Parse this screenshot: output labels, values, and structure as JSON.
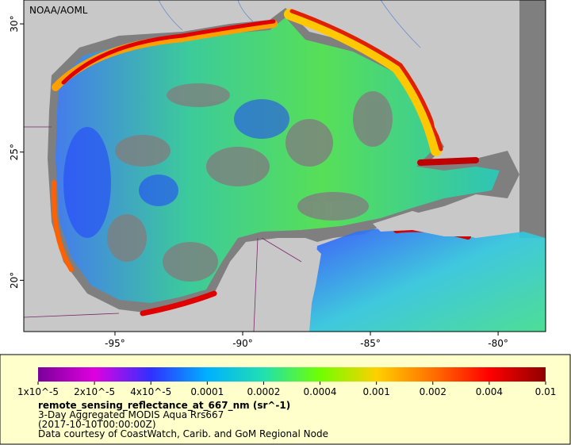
{
  "map": {
    "source": "NOAA/AOML",
    "xlim": [
      -98.57,
      -78.14
    ],
    "ylim": [
      18.0,
      30.93
    ],
    "xticks": [
      {
        "value": -95,
        "label": "-95°"
      },
      {
        "value": -90,
        "label": "-90°"
      },
      {
        "value": -85,
        "label": "-85°"
      },
      {
        "value": -80,
        "label": "-80°"
      }
    ],
    "yticks": [
      {
        "value": 20,
        "label": "20°"
      },
      {
        "value": 25,
        "label": "25°"
      },
      {
        "value": 30,
        "label": "30°"
      }
    ],
    "colorbar": {
      "scale": "log",
      "colors": [
        "#7a0099",
        "#e000e0",
        "#3030ff",
        "#00b0ff",
        "#20e0b0",
        "#70ff00",
        "#ffd000",
        "#ff7000",
        "#ff0000",
        "#900000"
      ],
      "ticks": [
        {
          "value": 1e-05,
          "label": "1x10^-5"
        },
        {
          "value": 2e-05,
          "label": "2x10^-5"
        },
        {
          "value": 4e-05,
          "label": "4x10^-5"
        },
        0.0001,
        0.0002,
        0.0004,
        0.001,
        0.002,
        0.004,
        0.01
      ],
      "title": "remote_sensing_reflectance_at_667_nm (sr^-1)",
      "lines": [
        "3-Day Aggregated MODIS Aqua Rrs667",
        "(2017-10-10T00:00:00Z)",
        "Data courtesy of CoastWatch, Carib. and GoM Regional Node"
      ]
    }
  }
}
